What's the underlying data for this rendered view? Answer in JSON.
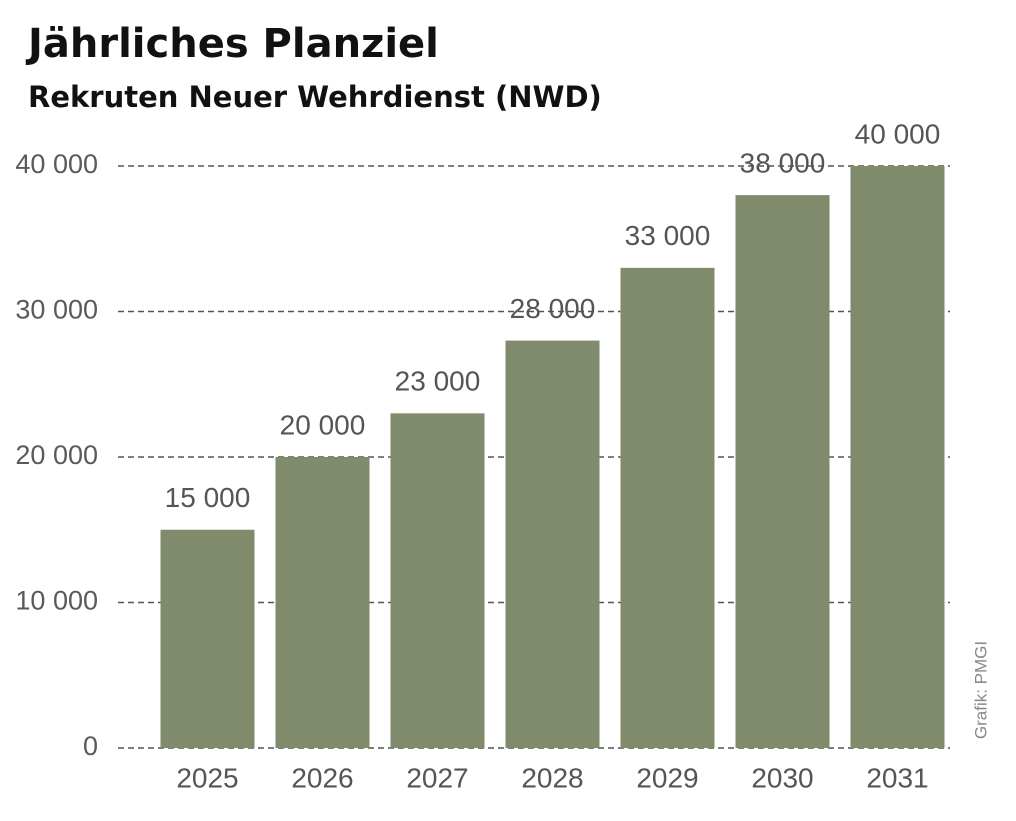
{
  "chart_data": {
    "type": "bar",
    "title": "Jährliches Planziel",
    "subtitle": "Rekruten Neuer Wehrdienst (NWD)",
    "credit": "Grafik: PMGI",
    "categories": [
      "2025",
      "2026",
      "2027",
      "2028",
      "2029",
      "2030",
      "2031"
    ],
    "values": [
      15000,
      20000,
      23000,
      28000,
      33000,
      38000,
      40000
    ],
    "value_labels": [
      "15 000",
      "20 000",
      "23 000",
      "28 000",
      "33 000",
      "38 000",
      "40 000"
    ],
    "color": "#7f8b6b",
    "ylim": [
      0,
      40000
    ],
    "yticks": [
      0,
      {
        "value": 10000,
        "label": "10 000"
      },
      {
        "value": 20000,
        "label": "20 000"
      },
      {
        "value": 30000,
        "label": "30 000"
      },
      {
        "value": 40000,
        "label": "40 000"
      }
    ],
    "grid": true
  }
}
